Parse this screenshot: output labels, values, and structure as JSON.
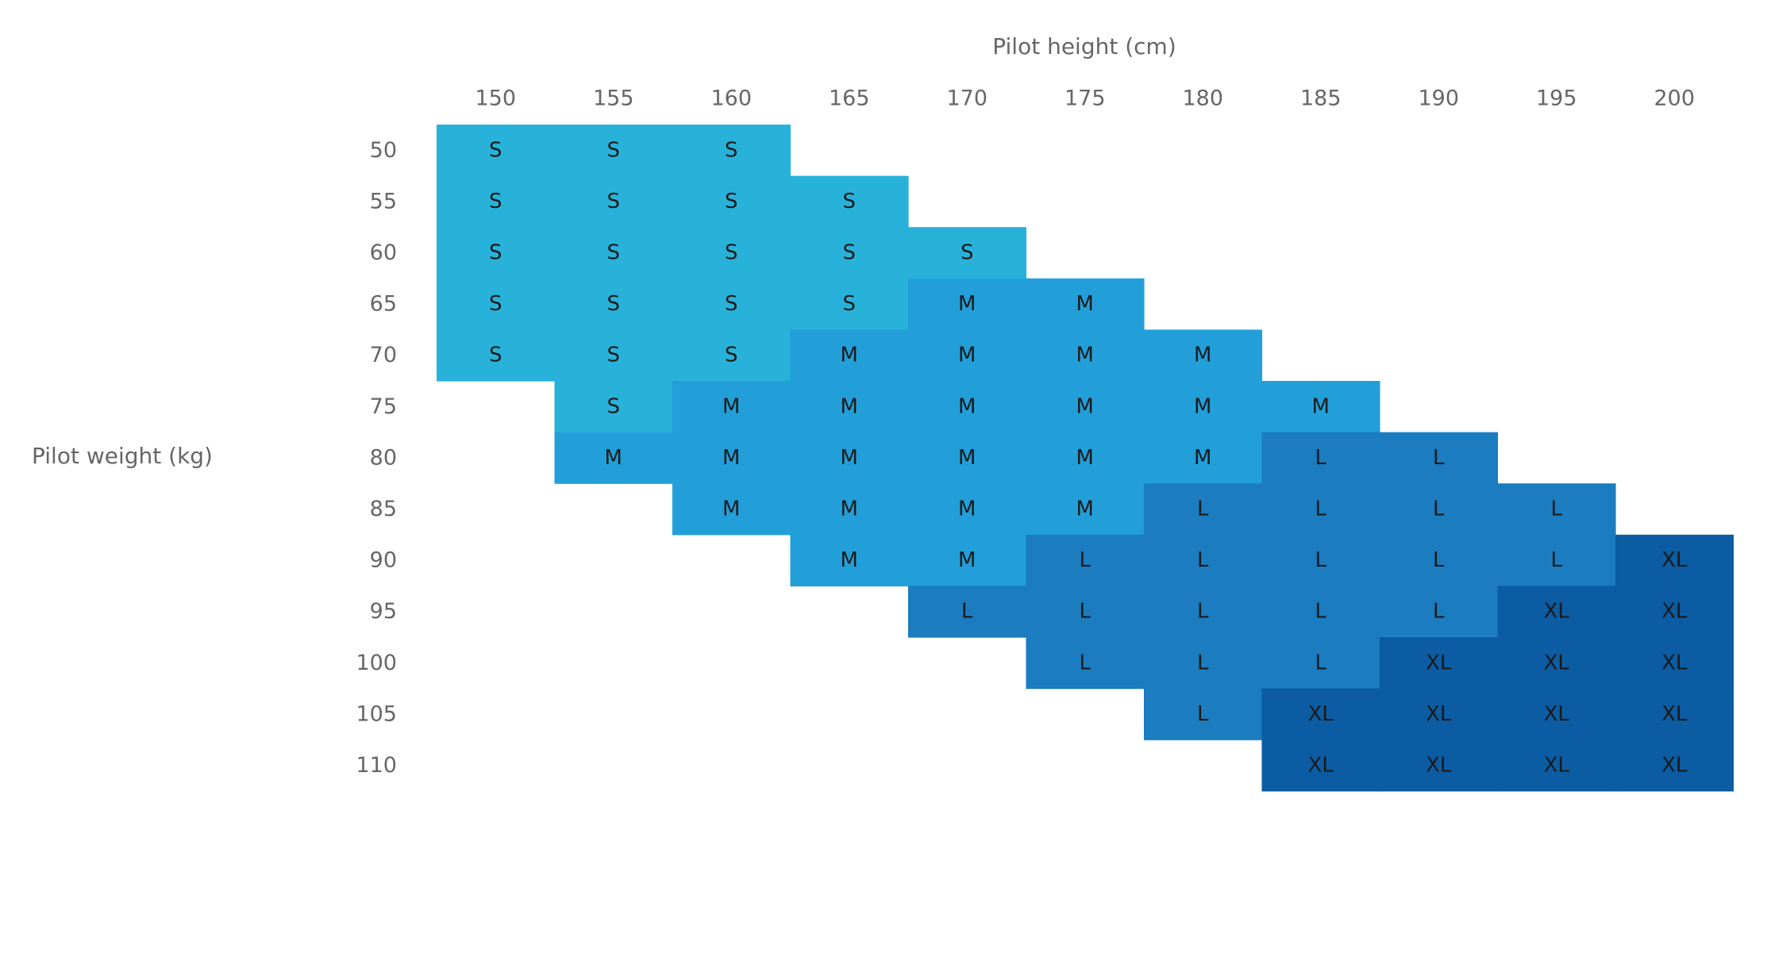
{
  "chart_data": {
    "type": "heatmap",
    "title": "",
    "xlabel": "Pilot height (cm)",
    "ylabel": "Pilot weight (kg)",
    "x": [
      150,
      155,
      160,
      165,
      170,
      175,
      180,
      185,
      190,
      195,
      200
    ],
    "y": [
      50,
      55,
      60,
      65,
      70,
      75,
      80,
      85,
      90,
      95,
      100,
      105,
      110
    ],
    "rows": [
      [
        "S",
        "S",
        "S",
        "",
        "",
        "",
        "",
        "",
        "",
        "",
        ""
      ],
      [
        "S",
        "S",
        "S",
        "S",
        "",
        "",
        "",
        "",
        "",
        "",
        ""
      ],
      [
        "S",
        "S",
        "S",
        "S",
        "S",
        "",
        "",
        "",
        "",
        "",
        ""
      ],
      [
        "S",
        "S",
        "S",
        "S",
        "M",
        "M",
        "",
        "",
        "",
        "",
        ""
      ],
      [
        "S",
        "S",
        "S",
        "M",
        "M",
        "M",
        "M",
        "",
        "",
        "",
        ""
      ],
      [
        "",
        "S",
        "M",
        "M",
        "M",
        "M",
        "M",
        "M",
        "",
        "",
        ""
      ],
      [
        "",
        "M",
        "M",
        "M",
        "M",
        "M",
        "M",
        "L",
        "L",
        "",
        ""
      ],
      [
        "",
        "",
        "M",
        "M",
        "M",
        "M",
        "L",
        "L",
        "L",
        "L",
        ""
      ],
      [
        "",
        "",
        "",
        "M",
        "M",
        "L",
        "L",
        "L",
        "L",
        "L",
        "XL"
      ],
      [
        "",
        "",
        "",
        "",
        "L",
        "L",
        "L",
        "L",
        "L",
        "XL",
        "XL"
      ],
      [
        "",
        "",
        "",
        "",
        "",
        "L",
        "L",
        "L",
        "XL",
        "XL",
        "XL"
      ],
      [
        "",
        "",
        "",
        "",
        "",
        "",
        "L",
        "XL",
        "XL",
        "XL",
        "XL"
      ],
      [
        "",
        "",
        "",
        "",
        "",
        "",
        "",
        "XL",
        "XL",
        "XL",
        "XL"
      ]
    ],
    "colors": {
      "S": "#29b2d9",
      "M": "#229fd9",
      "L": "#1b7cbf",
      "XL": "#0b5ca3"
    },
    "x_axis_position": "top",
    "grid": false,
    "legend": "none"
  }
}
